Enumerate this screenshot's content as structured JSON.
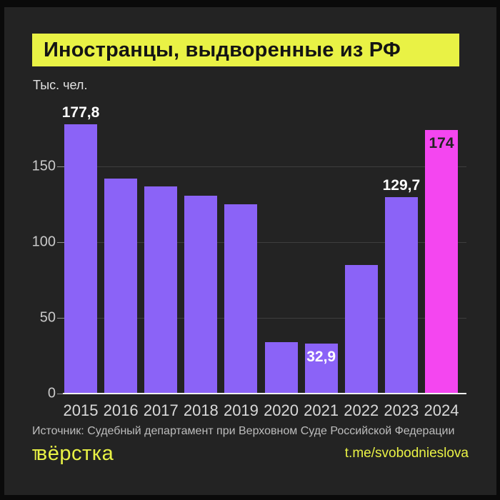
{
  "title": "Иностранцы, выдворенные из РФ",
  "units_label": "Тыс. чел.",
  "source": "Источник: Судебный департамент при Верховном Суде Российской Федерации",
  "footer": {
    "logo_mark": "т",
    "logo": "вёрстка",
    "link": "t.me/svobodnieslova"
  },
  "colors": {
    "background": "#232323",
    "accent_yellow": "#e9f245",
    "bar_purple": "#8b63f7",
    "bar_magenta": "#f446f0",
    "grid": "#3e3e3e",
    "axis": "#f0f0f0",
    "value_label_light": "#ffffff",
    "value_label_dark": "#232323"
  },
  "chart_data": {
    "type": "bar",
    "title": "Иностранцы, выдворенные из РФ",
    "ylabel": "Тыс. чел.",
    "categories": [
      "2015",
      "2016",
      "2017",
      "2018",
      "2019",
      "2020",
      "2021",
      "2022",
      "2023",
      "2024"
    ],
    "values": [
      177.8,
      142,
      137,
      130.5,
      125,
      34,
      32.9,
      85,
      129.7,
      174
    ],
    "yticks": [
      0,
      50,
      100,
      150
    ],
    "ylim": [
      0,
      185
    ],
    "grid": true,
    "legend": null,
    "highlight_index": 9,
    "value_labels": [
      {
        "index": 0,
        "text": "177,8",
        "placement": "above",
        "color": "#ffffff"
      },
      {
        "index": 6,
        "text": "32,9",
        "placement": "inside",
        "color": "#ffffff"
      },
      {
        "index": 8,
        "text": "129,7",
        "placement": "above",
        "color": "#ffffff"
      },
      {
        "index": 9,
        "text": "174",
        "placement": "inside",
        "color": "#232323"
      }
    ]
  }
}
